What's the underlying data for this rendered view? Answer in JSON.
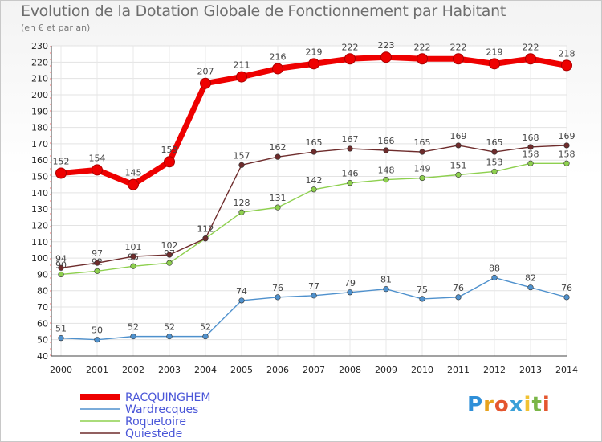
{
  "chart_data": {
    "type": "line",
    "title": "Evolution de la Dotation Globale de Fonctionnement par Habitant",
    "subtitle": "(en € et par an)",
    "x": [
      "2000",
      "2001",
      "2002",
      "2003",
      "2004",
      "2005",
      "2006",
      "2007",
      "2008",
      "2009",
      "2010",
      "2011",
      "2012",
      "2013",
      "2014"
    ],
    "ylim": [
      40,
      230
    ],
    "yticks": [
      40,
      50,
      60,
      70,
      80,
      90,
      100,
      110,
      120,
      130,
      140,
      150,
      160,
      170,
      180,
      190,
      200,
      210,
      220,
      230
    ],
    "grid": true,
    "series": [
      {
        "name": "RACQUINGHEM",
        "color": "#ee0000",
        "values": [
          152,
          154,
          145,
          159,
          207,
          211,
          216,
          219,
          222,
          223,
          222,
          222,
          219,
          222,
          218
        ]
      },
      {
        "name": "Wardrecques",
        "color": "#4f91cd",
        "values": [
          51,
          50,
          52,
          52,
          52,
          74,
          76,
          77,
          79,
          81,
          75,
          76,
          88,
          82,
          76
        ]
      },
      {
        "name": "Roquetoire",
        "color": "#8ed04f",
        "values": [
          90,
          92,
          95,
          97,
          112,
          128,
          131,
          142,
          146,
          148,
          149,
          151,
          153,
          158,
          158
        ]
      },
      {
        "name": "Quiestède",
        "color": "#6e2c2c",
        "values": [
          94,
          97,
          101,
          102,
          112,
          157,
          162,
          165,
          167,
          166,
          165,
          169,
          165,
          168,
          169
        ]
      }
    ],
    "legend_position": "bottom-left"
  },
  "brand": {
    "letters": [
      "P",
      "r",
      "o",
      "x",
      "i",
      "t",
      "i"
    ],
    "colors": [
      "#2f8fd8",
      "#e7a21e",
      "#e4562f",
      "#3aa0d8",
      "#f1c232",
      "#7ab648",
      "#e4562f"
    ]
  }
}
